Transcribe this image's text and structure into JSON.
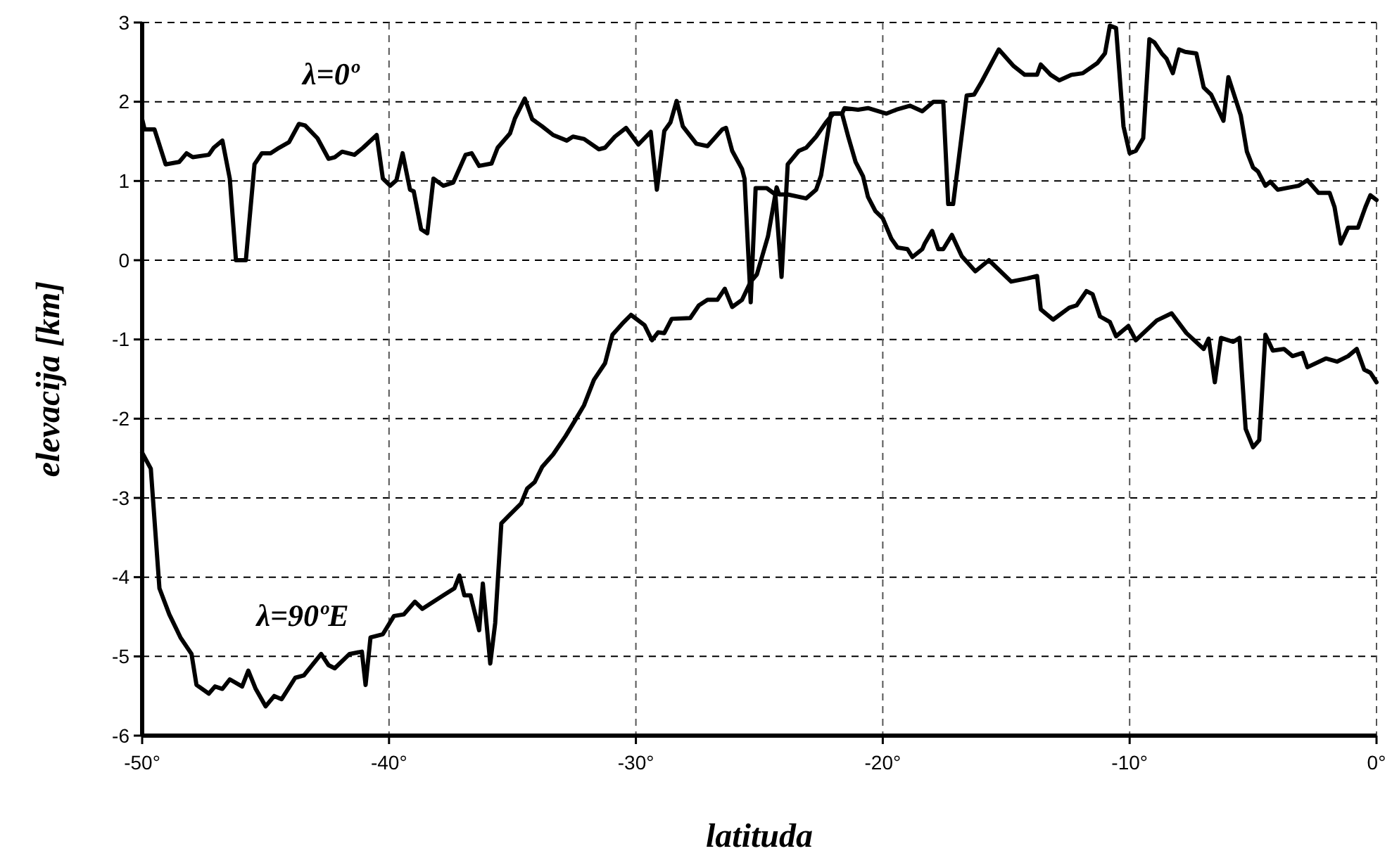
{
  "chart_data": {
    "type": "line",
    "xlabel": "latituda",
    "ylabel": "elevacija [km]",
    "xlim": [
      -50,
      0
    ],
    "ylim": [
      -6,
      3
    ],
    "xticks": [
      {
        "value": -50,
        "label": "-50°"
      },
      {
        "value": -40,
        "label": "-40°"
      },
      {
        "value": -30,
        "label": "-30°"
      },
      {
        "value": -20,
        "label": "-20°"
      },
      {
        "value": -10,
        "label": "-10°"
      },
      {
        "value": 0,
        "label": "0°"
      }
    ],
    "yticks": [
      -6,
      -5,
      -4,
      -3,
      -2,
      -1,
      0,
      1,
      2,
      3
    ],
    "grid": true,
    "series": [
      {
        "name": "λ=0º",
        "color": "#000000",
        "x": [
          -50,
          -49.9,
          -49.5,
          -49.05,
          -48.5,
          -48.2,
          -47.95,
          -47.3,
          -47.1,
          -46.75,
          -46.45,
          -46.2,
          -45.8,
          -45.45,
          -45.15,
          -44.8,
          -44.45,
          -44.05,
          -43.65,
          -43.4,
          -42.9,
          -42.45,
          -42.2,
          -41.9,
          -41.4,
          -41.05,
          -40.5,
          -40.25,
          -39.95,
          -39.7,
          -39.45,
          -39.15,
          -39,
          -38.7,
          -38.45,
          -38.2,
          -37.8,
          -37.4,
          -36.9,
          -36.65,
          -36.35,
          -35.85,
          -35.6,
          -35.1,
          -34.9,
          -34.5,
          -34.2,
          -33.8,
          -33.35,
          -32.8,
          -32.55,
          -32.1,
          -31.5,
          -31.25,
          -30.85,
          -30.4,
          -29.9,
          -29.4,
          -29.15,
          -28.85,
          -28.6,
          -28.35,
          -28.1,
          -27.55,
          -27.1,
          -26.5,
          -26.35,
          -26.1,
          -25.7,
          -25.6,
          -25.35,
          -25.15,
          -24.7,
          -24.35,
          -24.1,
          -23.85,
          -23.4,
          -23.1,
          -22.7,
          -22.3,
          -22,
          -21.65,
          -21.55,
          -21,
          -20.6,
          -19.85,
          -19.45,
          -18.9,
          -18.4,
          -17.95,
          -17.55,
          -17.35,
          -17.15,
          -16.6,
          -16.3,
          -16,
          -15.3,
          -14.7,
          -14.25,
          -13.75,
          -13.6,
          -13.2,
          -12.85,
          -12.35,
          -11.9,
          -11.3,
          -11,
          -10.8,
          -10.55,
          -10.25,
          -10,
          -9.75,
          -9.45,
          -9.2,
          -9,
          -8.7,
          -8.5,
          -8.25,
          -8,
          -7.75,
          -7.3,
          -7,
          -6.7,
          -6.2,
          -6,
          -5.5,
          -5.25,
          -5,
          -4.8,
          -4.5,
          -4.3,
          -4,
          -3.5,
          -3.15,
          -2.8,
          -2.35,
          -1.9,
          -1.7,
          -1.45,
          -1.15,
          -0.75,
          -0.45,
          -0.25,
          0
        ],
        "values": [
          1.78,
          1.65,
          1.65,
          1.21,
          1.24,
          1.35,
          1.3,
          1.33,
          1.42,
          1.51,
          1.03,
          0,
          0,
          1.21,
          1.35,
          1.35,
          1.42,
          1.49,
          1.72,
          1.7,
          1.54,
          1.28,
          1.3,
          1.37,
          1.33,
          1.42,
          1.58,
          1.03,
          0.94,
          1.01,
          1.35,
          0.89,
          0.87,
          0.39,
          0.34,
          1.03,
          0.94,
          0.98,
          1.33,
          1.35,
          1.19,
          1.22,
          1.42,
          1.6,
          1.79,
          2.04,
          1.78,
          1.69,
          1.58,
          1.51,
          1.56,
          1.53,
          1.4,
          1.42,
          1.56,
          1.67,
          1.46,
          1.62,
          0.89,
          1.63,
          1.74,
          2.01,
          1.69,
          1.47,
          1.44,
          1.65,
          1.67,
          1.38,
          1.15,
          1.03,
          -0.53,
          0.91,
          0.91,
          0.83,
          -0.21,
          1.21,
          1.38,
          1.42,
          1.56,
          1.74,
          1.85,
          1.85,
          1.92,
          1.9,
          1.92,
          1.85,
          1.9,
          1.95,
          1.88,
          2,
          2,
          0.71,
          0.71,
          2.08,
          2.09,
          2.25,
          2.66,
          2.45,
          2.34,
          2.34,
          2.47,
          2.34,
          2.27,
          2.34,
          2.36,
          2.49,
          2.61,
          2.96,
          2.93,
          1.69,
          1.35,
          1.38,
          1.54,
          2.79,
          2.75,
          2.61,
          2.54,
          2.36,
          2.66,
          2.63,
          2.61,
          2.18,
          2.09,
          1.76,
          2.31,
          1.83,
          1.37,
          1.17,
          1.12,
          0.94,
          0.99,
          0.89,
          0.92,
          0.94,
          1.01,
          0.85,
          0.85,
          0.67,
          0.21,
          0.41,
          0.41,
          0.67,
          0.82,
          0.76
        ]
      },
      {
        "name": "λ=90ºE",
        "color": "#000000",
        "x": [
          -50,
          -49.65,
          -49.3,
          -48.9,
          -48.45,
          -48,
          -47.8,
          -47.3,
          -47.05,
          -46.75,
          -46.45,
          -45.95,
          -45.7,
          -45.4,
          -45,
          -44.65,
          -44.35,
          -43.8,
          -43.45,
          -42.75,
          -42.45,
          -42.2,
          -41.6,
          -41.1,
          -40.95,
          -40.75,
          -40.25,
          -39.8,
          -39.4,
          -38.95,
          -38.65,
          -37.8,
          -37.35,
          -37.15,
          -36.95,
          -36.7,
          -36.35,
          -36.2,
          -35.9,
          -35.7,
          -35.45,
          -35.1,
          -34.65,
          -34.4,
          -34.1,
          -33.8,
          -33.35,
          -32.85,
          -32.5,
          -32.1,
          -31.7,
          -31.25,
          -30.95,
          -30.55,
          -30.2,
          -29.65,
          -29.35,
          -29.1,
          -28.85,
          -28.55,
          -27.8,
          -27.45,
          -27.1,
          -26.7,
          -26.4,
          -26.1,
          -25.7,
          -25.35,
          -25.1,
          -24.65,
          -24.3,
          -24.2,
          -23.85,
          -23.1,
          -22.7,
          -22.5,
          -22.1,
          -21.65,
          -21.4,
          -21.1,
          -20.8,
          -20.6,
          -20.3,
          -20,
          -19.65,
          -19.4,
          -19,
          -18.8,
          -18.4,
          -18.3,
          -18,
          -17.75,
          -17.55,
          -17.2,
          -16.8,
          -16.25,
          -15.7,
          -15.3,
          -14.8,
          -14.15,
          -13.75,
          -13.6,
          -13.1,
          -12.45,
          -12.15,
          -11.75,
          -11.5,
          -11.2,
          -10.8,
          -10.55,
          -10.05,
          -9.75,
          -8.9,
          -8.3,
          -7.7,
          -7,
          -6.8,
          -6.55,
          -6.3,
          -5.8,
          -5.55,
          -5.3,
          -5,
          -4.75,
          -4.5,
          -4.2,
          -3.75,
          -3.4,
          -3,
          -2.8,
          -2.05,
          -1.6,
          -1.15,
          -0.8,
          -0.5,
          -0.25,
          0
        ],
        "values": [
          -2.43,
          -2.63,
          -4.14,
          -4.47,
          -4.76,
          -4.97,
          -5.36,
          -5.47,
          -5.38,
          -5.41,
          -5.29,
          -5.38,
          -5.18,
          -5.41,
          -5.63,
          -5.5,
          -5.54,
          -5.27,
          -5.24,
          -4.97,
          -5.11,
          -5.15,
          -4.97,
          -4.94,
          -5.36,
          -4.76,
          -4.72,
          -4.49,
          -4.47,
          -4.31,
          -4.4,
          -4.23,
          -4.14,
          -3.98,
          -4.23,
          -4.23,
          -4.67,
          -4.08,
          -5.09,
          -4.58,
          -3.32,
          -3.21,
          -3.07,
          -2.88,
          -2.8,
          -2.61,
          -2.45,
          -2.22,
          -2.04,
          -1.83,
          -1.51,
          -1.3,
          -0.94,
          -0.8,
          -0.69,
          -0.82,
          -1.01,
          -0.91,
          -0.92,
          -0.74,
          -0.73,
          -0.57,
          -0.5,
          -0.5,
          -0.36,
          -0.59,
          -0.5,
          -0.27,
          -0.18,
          0.3,
          0.92,
          0.83,
          0.83,
          0.78,
          0.89,
          1.07,
          1.85,
          1.85,
          1.56,
          1.24,
          1.06,
          0.8,
          0.62,
          0.53,
          0.27,
          0.16,
          0.14,
          0.04,
          0.14,
          0.21,
          0.37,
          0.14,
          0.14,
          0.32,
          0.05,
          -0.14,
          0,
          -0.12,
          -0.27,
          -0.23,
          -0.2,
          -0.62,
          -0.75,
          -0.6,
          -0.57,
          -0.39,
          -0.43,
          -0.71,
          -0.78,
          -0.96,
          -0.83,
          -1.01,
          -0.76,
          -0.67,
          -0.92,
          -1.12,
          -0.99,
          -1.54,
          -0.98,
          -1.03,
          -0.98,
          -2.13,
          -2.36,
          -2.27,
          -0.94,
          -1.14,
          -1.12,
          -1.21,
          -1.17,
          -1.35,
          -1.24,
          -1.28,
          -1.21,
          -1.12,
          -1.38,
          -1.42,
          -1.54
        ]
      }
    ]
  }
}
